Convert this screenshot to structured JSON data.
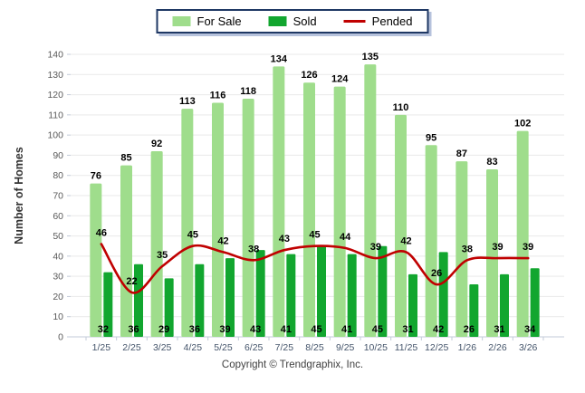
{
  "window_title": "Number of Homes chart",
  "legend": {
    "items": [
      {
        "label": "For Sale",
        "swatch": "light-green-rect",
        "color": "#9FDD8C"
      },
      {
        "label": "Sold",
        "swatch": "dark-green-rect",
        "color": "#12A62F"
      },
      {
        "label": "Pended",
        "swatch": "red-line",
        "color": "#C00000"
      }
    ]
  },
  "footer": {
    "copyright": "Copyright © Trendgraphix, Inc."
  },
  "colors": {
    "for_sale_bar": "#9FDD8C",
    "sold_bar": "#12A62F",
    "pended_line": "#C00000",
    "gridline": "#e9e9e9",
    "axis_line": "#c3cbd9",
    "y_tick_label": "#595959",
    "x_tick_label": "#44546A",
    "value_label": "#000000",
    "legend_border": "#1F3864"
  },
  "chart_data": {
    "type": "bar",
    "subtype": "grouped bars with smoothed line overlay",
    "categories": [
      "1/25",
      "2/25",
      "3/25",
      "4/25",
      "5/25",
      "6/25",
      "7/25",
      "8/25",
      "9/25",
      "10/25",
      "11/25",
      "12/25",
      "1/26",
      "2/26",
      "3/26"
    ],
    "series": [
      {
        "name": "For Sale",
        "type": "bar",
        "color": "#9FDD8C",
        "values": [
          76,
          85,
          92,
          113,
          116,
          118,
          134,
          126,
          124,
          135,
          110,
          95,
          87,
          83,
          102
        ]
      },
      {
        "name": "Sold",
        "type": "bar",
        "color": "#12A62F",
        "values": [
          32,
          36,
          29,
          36,
          39,
          43,
          41,
          45,
          41,
          45,
          31,
          42,
          26,
          31,
          34
        ]
      },
      {
        "name": "Pended",
        "type": "line",
        "color": "#C00000",
        "values": [
          46,
          22,
          35,
          45,
          42,
          38,
          43,
          45,
          44,
          39,
          42,
          26,
          38,
          39,
          39
        ]
      }
    ],
    "title": "",
    "xlabel": "",
    "ylabel": "Number of Homes",
    "ylim": [
      0,
      140
    ],
    "ytick_step": 10,
    "yticks": [
      0,
      10,
      20,
      30,
      40,
      50,
      60,
      70,
      80,
      90,
      100,
      110,
      120,
      130,
      140
    ],
    "grid": true,
    "data_labels": true,
    "legend_position": "top-center"
  }
}
